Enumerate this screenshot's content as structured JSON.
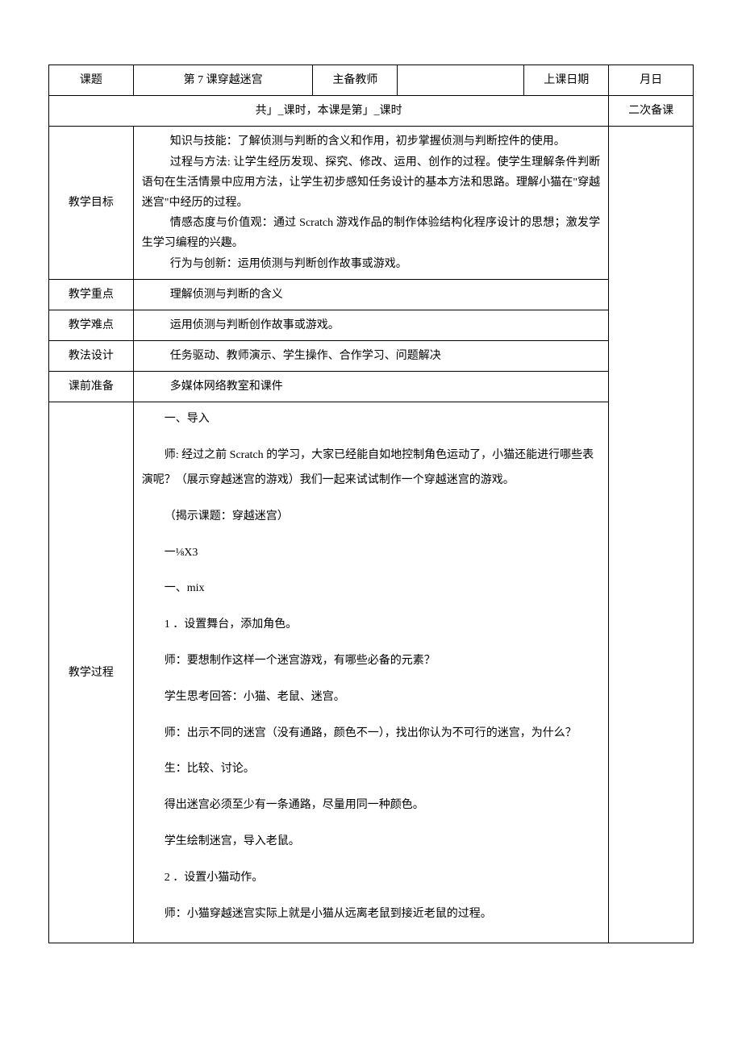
{
  "header": {
    "topic_label": "课题",
    "topic_value": "第 7 课穿越迷宫",
    "teacher_label": "主备教师",
    "teacher_value": "",
    "date_label": "上课日期",
    "date_value": "月日"
  },
  "period_row": {
    "text": "共」_课时，本课是第」_课时",
    "notes_label": "二次备课"
  },
  "objectives": {
    "label": "教学目标",
    "line1": "知识与技能：了解侦测与判断的含义和作用，初步掌握侦测与判断控件的使用。",
    "line2": "过程与方法: 让学生经历发现、探究、修改、运用、创作的过程。使学生理解条件判断语句在生活情景中应用方法，让学生初步感知任务设计的基本方法和思路。理解小猫在\"穿越迷宫\"中经历的过程。",
    "line3": "情感态度与价值观：通过 Scratch 游戏作品的制作体验结构化程序设计的思想；激发学生学习编程的兴趣。",
    "line4": "行为与创新：运用侦测与判断创作故事或游戏。"
  },
  "keypoint": {
    "label": "教学重点",
    "value": "理解侦测与判断的含义"
  },
  "difficult": {
    "label": "教学难点",
    "value": "运用侦测与判断创作故事或游戏。"
  },
  "method": {
    "label": "教法设计",
    "value": "任务驱动、教师演示、学生操作、合作学习、问题解决"
  },
  "prep": {
    "label": "课前准备",
    "value": "多媒体网络教室和课件"
  },
  "process": {
    "label": "教学过程",
    "p1": "一、导入",
    "p2": "师: 经过之前 Scratch 的学习，大家已经能自如地控制角色运动了，小猫还能进行哪些表演呢？（展示穿越迷宫的游戏）我们一起来试试制作一个穿越迷宫的游戏。",
    "p3": "（揭示课题：穿越迷宫）",
    "p4": "一⅛X3",
    "p5": "一、mix",
    "p6": "1 ．设置舞台，添加角色。",
    "p7": "师：要想制作这样一个迷宫游戏，有哪些必备的元素？",
    "p8": "学生思考回答：小猫、老鼠、迷宫。",
    "p9": "师：出示不同的迷宫（没有通路，颜色不一），找出你认为不可行的迷宫，为什么？",
    "p10": "生：比较、讨论。",
    "p11": "得出迷宫必须至少有一条通路，尽量用同一种颜色。",
    "p12": "学生绘制迷宫，导入老鼠。",
    "p13": "2 ．设置小猫动作。",
    "p14": "师：小猫穿越迷宫实际上就是小猫从远离老鼠到接近老鼠的过程。"
  }
}
